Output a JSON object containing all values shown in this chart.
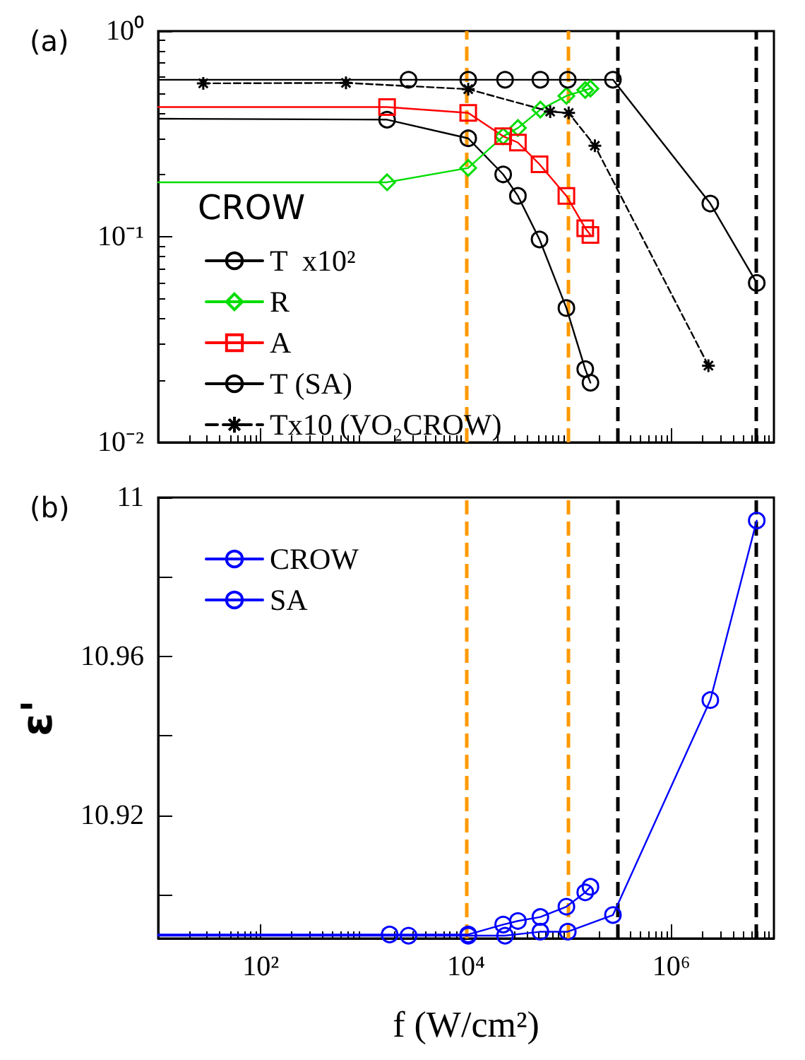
{
  "chart_data": [
    {
      "type": "line",
      "title": "(a)",
      "legend_title": "CROW",
      "legend": "bottom left",
      "log": "xy",
      "tick_labels": "y",
      "xlim": [
        10,
        10000000
      ],
      "xticks": [
        100,
        10000,
        1000000
      ],
      "ylim": [
        0.01,
        1
      ],
      "yticks": [
        {
          "value": 1,
          "label": "10⁰"
        },
        {
          "value": 0.1,
          "label": "10⁻¹"
        },
        {
          "value": 0.01,
          "label": "10⁻²"
        }
      ],
      "ref_lines": [
        {
          "axis": "x",
          "value": 10000,
          "color": "#ff9900",
          "line_style": "dashed"
        },
        {
          "axis": "x",
          "value": 100000,
          "color": "#ff9900",
          "line_style": "dashed"
        },
        {
          "axis": "x",
          "value": 300000,
          "color": "#000000",
          "line_style": "dashed"
        },
        {
          "axis": "x",
          "value": 6600000,
          "color": "#000000",
          "line_style": "dashed"
        }
      ],
      "series": [
        {
          "name": "T  x10²",
          "color": "#000000",
          "marker": "circle",
          "line_style": "solid",
          "x": [
            10,
            1700,
            10500,
            23000,
            32000,
            52000,
            95000,
            145000,
            163000
          ],
          "values": [
            0.375,
            0.371,
            0.301,
            0.201,
            0.158,
            0.097,
            0.045,
            0.0227,
            0.0195
          ]
        },
        {
          "name": "R",
          "color": "#00dd00",
          "marker": "diamond",
          "line_style": "solid",
          "x": [
            10,
            1700,
            10500,
            23000,
            32000,
            53000,
            95000,
            145000,
            163000
          ],
          "values": [
            0.184,
            0.184,
            0.216,
            0.308,
            0.338,
            0.415,
            0.484,
            0.517,
            0.525
          ]
        },
        {
          "name": "A",
          "color": "#ff0000",
          "marker": "square",
          "line_style": "solid",
          "x": [
            10,
            1700,
            10500,
            23000,
            32000,
            52000,
            95000,
            145000,
            163000
          ],
          "values": [
            0.427,
            0.427,
            0.4,
            0.308,
            0.287,
            0.225,
            0.158,
            0.11,
            0.102
          ]
        },
        {
          "name": "T (SA)",
          "color": "#000000",
          "marker": "circle",
          "line_style": "solid",
          "x": [
            10,
            2750,
            10500,
            24000,
            53000,
            98000,
            270000,
            2400000,
            6800000
          ],
          "values": [
            0.58,
            0.58,
            0.58,
            0.58,
            0.58,
            0.58,
            0.58,
            0.145,
            0.0596
          ]
        },
        {
          "name": "Tx10 (VO₂CROW)",
          "color": "#000000",
          "marker": "cross",
          "line_style": "dashed",
          "x": [
            27.5,
            676,
            10500,
            66000,
            100000,
            180000,
            2300000
          ],
          "values": [
            0.557,
            0.56,
            0.522,
            0.406,
            0.4,
            0.277,
            0.0236
          ]
        }
      ]
    },
    {
      "type": "line",
      "title": "(b)",
      "xlabel": "f (W/cm²)",
      "ylabel": "ε'",
      "legend": "top left",
      "log": "x",
      "xlim": [
        10,
        10000000
      ],
      "xticks": [
        {
          "value": 100,
          "label": "10²"
        },
        {
          "value": 10000,
          "label": "10⁴"
        },
        {
          "value": 1000000,
          "label": "10⁶"
        }
      ],
      "ylim": [
        10.889,
        11
      ],
      "yticks": [
        11,
        {
          "value": 10.98,
          "label": null
        },
        10.96,
        {
          "value": 10.94,
          "label": null
        },
        10.92,
        {
          "value": 10.9,
          "label": null
        }
      ],
      "ref_lines": [
        {
          "axis": "x",
          "value": 10000,
          "color": "#ff9900",
          "line_style": "dashed"
        },
        {
          "axis": "x",
          "value": 100000,
          "color": "#ff9900",
          "line_style": "dashed"
        },
        {
          "axis": "x",
          "value": 300000,
          "color": "#000000",
          "line_style": "dashed"
        },
        {
          "axis": "x",
          "value": 6600000,
          "color": "#000000",
          "line_style": "dashed"
        }
      ],
      "series": [
        {
          "name": "CROW",
          "color": "#0000ff",
          "marker": "circle",
          "line_style": "solid",
          "x": [
            10,
            1800,
            10500,
            23000,
            32000,
            53000,
            95000,
            145000,
            163000
          ],
          "values": [
            10.89,
            10.89,
            10.89,
            10.8925,
            10.8934,
            10.8944,
            10.897,
            10.9006,
            10.902
          ]
        },
        {
          "name": "SA",
          "color": "#0000ff",
          "marker": "circle",
          "line_style": "solid",
          "x": [
            10,
            2750,
            10500,
            24000,
            53000,
            98000,
            270000,
            2400000,
            6800000
          ],
          "values": [
            10.8897,
            10.8897,
            10.8897,
            10.8897,
            10.8907,
            10.8907,
            10.8949,
            10.949,
            10.9942
          ]
        }
      ]
    }
  ]
}
